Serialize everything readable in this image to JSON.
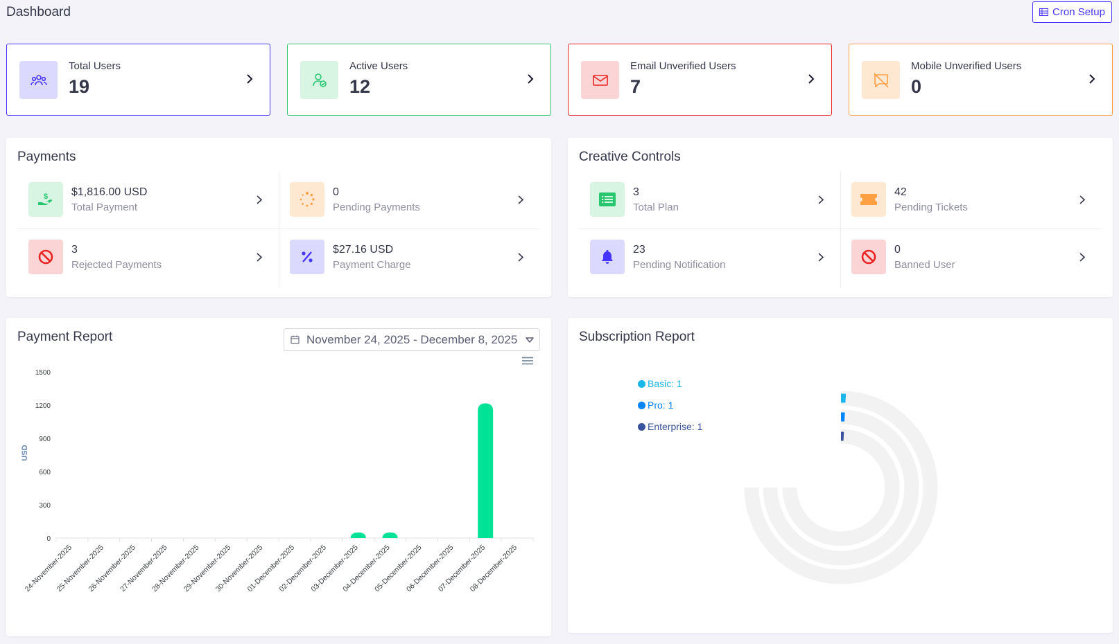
{
  "header": {
    "title": "Dashboard",
    "cron_label": "Cron Setup",
    "cron_icon": "cron-table-icon"
  },
  "widgets": [
    {
      "label": "Total Users",
      "value": "19",
      "icon": "users-group-icon",
      "color": "#4634ff",
      "bg": "#dcd9ff"
    },
    {
      "label": "Active Users",
      "value": "12",
      "icon": "user-check-icon",
      "color": "#28c76f",
      "bg": "#d8f5e4"
    },
    {
      "label": "Email Unverified Users",
      "value": "7",
      "icon": "envelope-icon",
      "color": "#eb2222",
      "bg": "#fbd5d5"
    },
    {
      "label": "Mobile Unverified Users",
      "value": "0",
      "icon": "comment-slash-icon",
      "color": "#ff9f43",
      "bg": "#ffe8d2"
    }
  ],
  "payments": {
    "title": "Payments",
    "items": [
      {
        "value": "$1,816.00 USD",
        "label": "Total Payment",
        "icon": "hand-dollar-icon",
        "color": "#28c76f",
        "bg": "#d8f5e4"
      },
      {
        "value": "0",
        "label": "Pending Payments",
        "icon": "spinner-icon",
        "color": "#ff9f43",
        "bg": "#ffe8d2"
      },
      {
        "value": "3",
        "label": "Rejected Payments",
        "icon": "ban-icon",
        "color": "#eb2222",
        "bg": "#fbd5d5"
      },
      {
        "value": "$27.16 USD",
        "label": "Payment Charge",
        "icon": "percent-icon",
        "color": "#4634ff",
        "bg": "#dcd9ff"
      }
    ]
  },
  "creative": {
    "title": "Creative Controls",
    "items": [
      {
        "value": "3",
        "label": "Total Plan",
        "icon": "list-icon",
        "color": "#28c76f",
        "bg": "#d8f5e4"
      },
      {
        "value": "42",
        "label": "Pending Tickets",
        "icon": "ticket-icon",
        "color": "#ff9f43",
        "bg": "#ffe8d2"
      },
      {
        "value": "23",
        "label": "Pending Notification",
        "icon": "bell-icon",
        "color": "#4634ff",
        "bg": "#dcd9ff"
      },
      {
        "value": "0",
        "label": "Banned User",
        "icon": "ban-icon",
        "color": "#eb2222",
        "bg": "#fbd5d5"
      }
    ]
  },
  "payment_report": {
    "title": "Payment Report",
    "date_range": "November 24, 2025 - December 8, 2025"
  },
  "subscription_report": {
    "title": "Subscription Report"
  },
  "chart_data": [
    {
      "type": "bar",
      "title": "Payment Report",
      "ylabel": "USD",
      "ylim": [
        0,
        1500
      ],
      "yticks": [
        "0",
        "300",
        "600",
        "900",
        "1200",
        "1500"
      ],
      "categories": [
        "24-November-2025",
        "25-November-2025",
        "26-November-2025",
        "27-November-2025",
        "28-November-2025",
        "29-November-2025",
        "30-November-2025",
        "01-December-2025",
        "02-December-2025",
        "03-December-2025",
        "04-December-2025",
        "05-December-2025",
        "06-December-2025",
        "07-December-2025",
        "08-December-2025"
      ],
      "values": [
        0,
        0,
        0,
        0,
        0,
        0,
        0,
        0,
        0,
        50,
        50,
        0,
        0,
        1216,
        0
      ],
      "color": "#00e396",
      "grid": false
    },
    {
      "type": "radialBar",
      "title": "Subscription Report",
      "categories": [
        "Basic",
        "Pro",
        "Enterprise"
      ],
      "values": [
        1,
        1,
        1
      ],
      "legend": [
        "Basic: 1",
        "Pro: 1",
        "Enterprise: 1"
      ],
      "colors": [
        "#1ab7ea",
        "#0084ff",
        "#39539e"
      ],
      "track_color": "#f2f2f2",
      "legend_position": "top-left"
    }
  ]
}
